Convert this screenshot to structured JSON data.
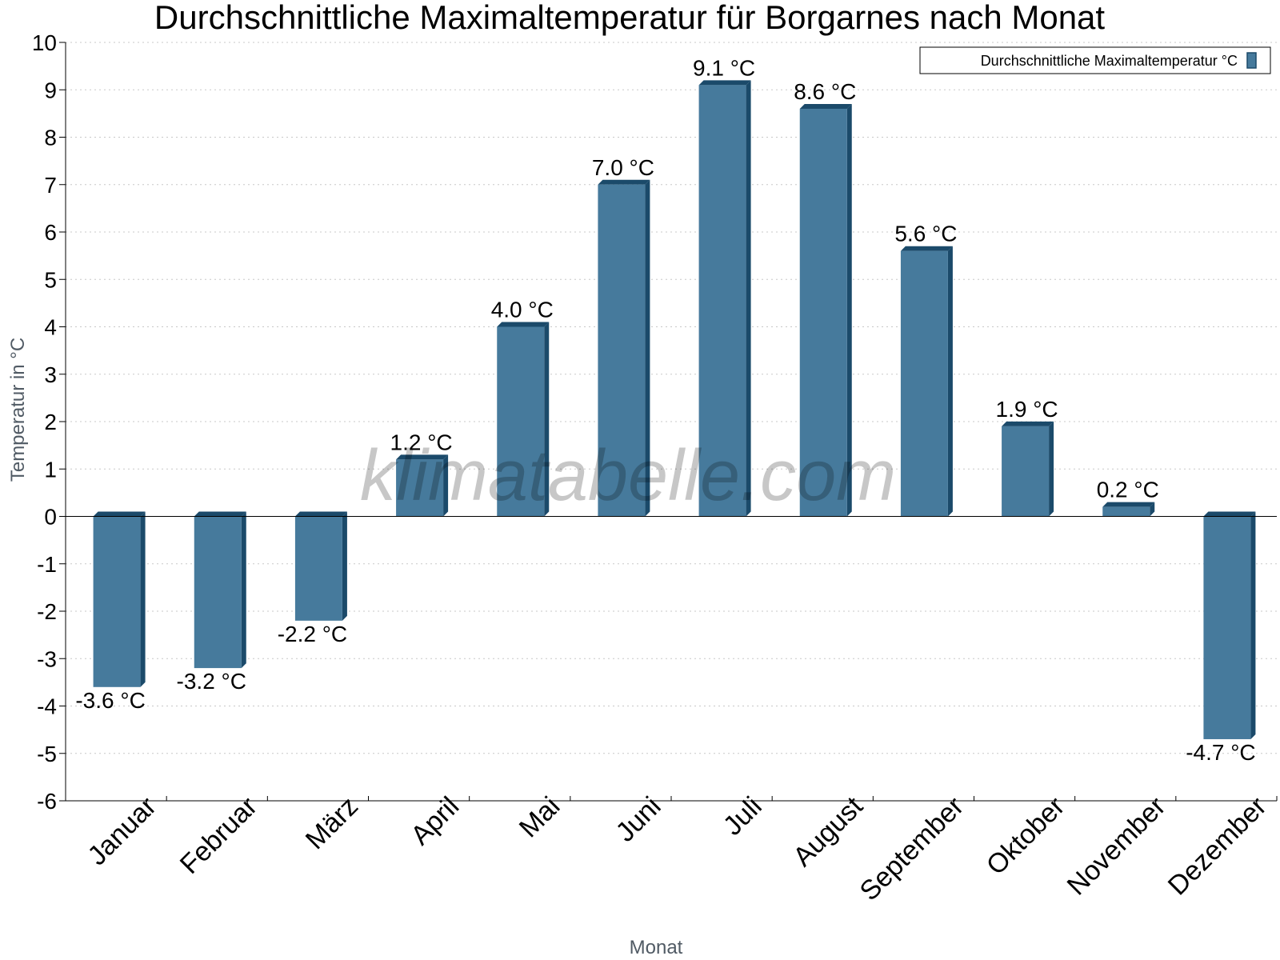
{
  "colors": {
    "bar_front": "#467a9c",
    "bar_side": "#1b4a6a",
    "grid": "#c8c8c8",
    "axis": "#000000"
  },
  "watermark": "klimatabelle.com",
  "chart_data": {
    "type": "bar",
    "title": "Durchschnittliche Maximaltemperatur für Borgarnes nach Monat",
    "xlabel": "Monat",
    "ylabel": "Temperatur in °C",
    "ylim": [
      -6,
      10
    ],
    "yticks": [
      "10",
      "9",
      "8",
      "7",
      "6",
      "5",
      "4",
      "3",
      "2",
      "1",
      "0",
      "-1",
      "-2",
      "-3",
      "-4",
      "-5",
      "-6"
    ],
    "grid": true,
    "legend": "top-right",
    "categories": [
      "Januar",
      "Februar",
      "März",
      "April",
      "Mai",
      "Juni",
      "Juli",
      "August",
      "September",
      "Oktober",
      "November",
      "Dezember"
    ],
    "series": [
      {
        "name": "Durchschnittliche Maximaltemperatur °C",
        "values": [
          -3.6,
          -3.2,
          -2.2,
          1.2,
          4.0,
          7.0,
          9.1,
          8.6,
          5.6,
          1.9,
          0.2,
          -4.7
        ],
        "labels": [
          "-3.6 °C",
          "-3.2 °C",
          "-2.2 °C",
          "1.2 °C",
          "4.0 °C",
          "7.0 °C",
          "9.1 °C",
          "8.6 °C",
          "5.6 °C",
          "1.9 °C",
          "0.2 °C",
          "-4.7 °C"
        ]
      }
    ]
  }
}
